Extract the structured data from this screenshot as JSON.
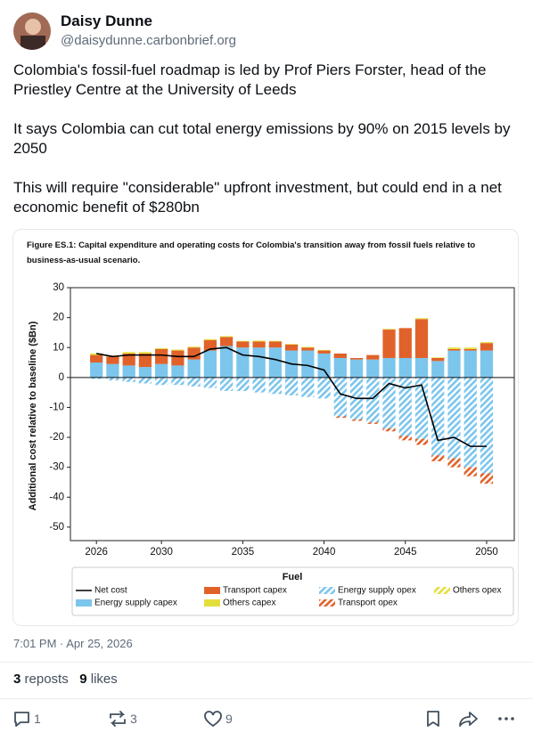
{
  "post": {
    "author_name": "Daisy Dunne",
    "handle": "@daisydunne.carbonbrief.org",
    "paragraphs": [
      "Colombia's fossil-fuel roadmap is led by Prof Piers Forster, head of the Priestley Centre at the University of Leeds",
      "It says Colombia can cut total energy emissions by 90% on 2015 levels by 2050",
      "This will require \"considerable\" upfront investment, but could end in a net economic benefit of $280bn"
    ],
    "timestamp": "7:01 PM · Apr 25, 2026",
    "stats": {
      "reposts": 3,
      "reposts_label": "reposts",
      "likes": 9,
      "likes_label": "likes"
    },
    "actions": {
      "replies": 1,
      "reposts": 3,
      "likes": 9
    }
  },
  "chart_data": {
    "type": "bar",
    "title": "Figure ES.1: Capital expenditure and operating costs for Colombia's transition away from fossil fuels relative to business-as-usual scenario.",
    "y_label": "Additional cost relative to baseline ($Bn)",
    "legend_title": "Fuel",
    "x": [
      2026,
      2027,
      2028,
      2029,
      2030,
      2031,
      2032,
      2033,
      2034,
      2035,
      2036,
      2037,
      2038,
      2039,
      2040,
      2041,
      2042,
      2043,
      2044,
      2045,
      2046,
      2047,
      2048,
      2049,
      2050
    ],
    "xlim": [
      2024.4,
      2051.7
    ],
    "xticks": [
      2026,
      2030,
      2035,
      2040,
      2045,
      2050
    ],
    "ylim": [
      -54.5,
      30
    ],
    "yticks": [
      30,
      20,
      10,
      0,
      -10,
      -20,
      -30,
      -40,
      -50
    ],
    "series": [
      {
        "name": "Net cost",
        "type": "line",
        "color": "#000000",
        "values": [
          8,
          7,
          7.5,
          7.5,
          7.5,
          7,
          7,
          9.5,
          10,
          7.5,
          7,
          6,
          4.5,
          4,
          2.5,
          -5.5,
          -7,
          -7,
          -2,
          -3.5,
          -2.5,
          -21,
          -20,
          -23,
          -23
        ]
      },
      {
        "name": "Energy supply capex",
        "type": "bar",
        "style": "solid",
        "color": "#7cc5ec",
        "values": [
          5,
          4.5,
          4,
          3.5,
          4.5,
          4,
          6,
          9,
          10.5,
          10,
          10,
          10,
          9,
          9,
          8,
          6.5,
          6,
          6,
          6.5,
          6.5,
          6.5,
          5.5,
          9,
          9,
          9
        ]
      },
      {
        "name": "Transport capex",
        "type": "bar",
        "style": "solid",
        "color": "#e0622a",
        "values": [
          2.5,
          2.5,
          4,
          4.5,
          5,
          5,
          4,
          3.5,
          3,
          2,
          2,
          2,
          2,
          1,
          1,
          1.5,
          0.5,
          1.5,
          9.5,
          10,
          13,
          1,
          0.5,
          0.5,
          2.5
        ]
      },
      {
        "name": "Others capex",
        "type": "bar",
        "style": "solid",
        "color": "#e3df3a",
        "values": [
          0.5,
          0.3,
          0.5,
          0.5,
          0.3,
          0.3,
          0.3,
          0.3,
          0.3,
          0.2,
          0.3,
          0.2,
          0.2,
          0.2,
          0.2,
          0,
          0,
          0,
          0.2,
          0,
          0.3,
          0.2,
          0.5,
          0.5,
          0.3
        ]
      },
      {
        "name": "Energy supply opex",
        "type": "bar",
        "style": "hatched",
        "color": "#7cc5ec",
        "values": [
          -0.5,
          -1,
          -1.5,
          -2,
          -2.5,
          -2.5,
          -3,
          -3.5,
          -4.5,
          -4.5,
          -5,
          -5.5,
          -6,
          -6.5,
          -7,
          -13,
          -14,
          -15,
          -17,
          -19.5,
          -20.5,
          -26,
          -27,
          -30,
          -32
        ]
      },
      {
        "name": "Transport opex",
        "type": "bar",
        "style": "hatched",
        "color": "#e0622a",
        "values": [
          0,
          0,
          0,
          0,
          0,
          0,
          0,
          0,
          0,
          0,
          0,
          0,
          0,
          0,
          0,
          -0.5,
          -0.5,
          -0.5,
          -1,
          -1.5,
          -2,
          -2,
          -3,
          -3,
          -3.5
        ]
      },
      {
        "name": "Others opex",
        "type": "bar",
        "style": "hatched",
        "color": "#e3df3a",
        "values": [
          0,
          0,
          0,
          0,
          0,
          0,
          0,
          0,
          0,
          0,
          0,
          0,
          0,
          0,
          0,
          0,
          0,
          0,
          0,
          0,
          0,
          0,
          0,
          0,
          0
        ]
      }
    ]
  }
}
